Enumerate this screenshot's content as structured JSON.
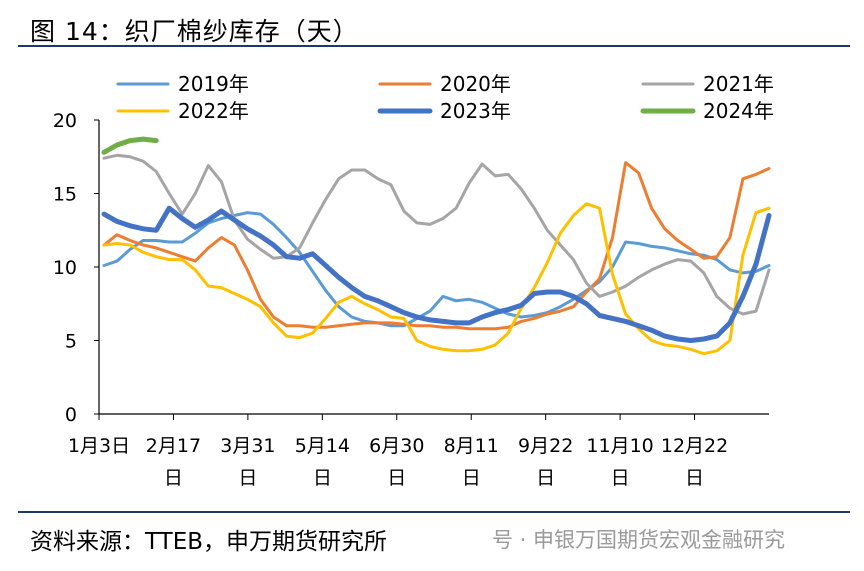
{
  "header": {
    "title": "图 14：织厂棉纱库存（天）"
  },
  "footer": {
    "source": "资料来源：TTEB，申万期货研究所",
    "watermark": "号 · 申银万国期货宏观金融研究"
  },
  "chart_data": {
    "type": "line",
    "title": "图 14：织厂棉纱库存（天）",
    "xlabel": "",
    "ylabel": "",
    "ylim": [
      0,
      20
    ],
    "yticks": [
      0,
      5,
      10,
      15,
      20
    ],
    "x_tick_labels": [
      {
        "line1": "1月3日",
        "line2": ""
      },
      {
        "line1": "2月17",
        "line2": "日"
      },
      {
        "line1": "3月31",
        "line2": "日"
      },
      {
        "line1": "5月14",
        "line2": "日"
      },
      {
        "line1": "6月30",
        "line2": "日"
      },
      {
        "line1": "8月11",
        "line2": "日"
      },
      {
        "line1": "9月22",
        "line2": "日"
      },
      {
        "line1": "11月10",
        "line2": "日"
      },
      {
        "line1": "12月22",
        "line2": "日"
      }
    ],
    "weeks": 52,
    "grid": false,
    "legend_position": "top",
    "series": [
      {
        "name": "2019年",
        "color": "#5b9bd5",
        "width": 3,
        "values": [
          10.1,
          10.4,
          11.2,
          11.8,
          11.8,
          11.7,
          11.7,
          12.3,
          13.0,
          13.3,
          13.5,
          13.7,
          13.6,
          12.9,
          12.0,
          11.0,
          9.7,
          8.4,
          7.3,
          6.6,
          6.3,
          6.2,
          6.0,
          6.0,
          6.5,
          7.0,
          8.0,
          7.7,
          7.8,
          7.6,
          7.2,
          6.8,
          6.6,
          6.7,
          6.9,
          7.3,
          7.8,
          8.4,
          9.0,
          10.0,
          11.7,
          11.6,
          11.4,
          11.3,
          11.1,
          10.9,
          10.8,
          10.5,
          9.8,
          9.6,
          9.7,
          10.1
        ]
      },
      {
        "name": "2020年",
        "color": "#ed7d31",
        "width": 3,
        "values": [
          11.5,
          12.2,
          11.8,
          11.5,
          11.3,
          11.0,
          10.7,
          10.4,
          11.3,
          12.0,
          11.5,
          9.8,
          7.8,
          6.6,
          6.0,
          6.0,
          5.9,
          5.9,
          6.0,
          6.1,
          6.2,
          6.2,
          6.2,
          6.1,
          6.0,
          6.0,
          5.9,
          5.9,
          5.8,
          5.8,
          5.8,
          5.9,
          6.3,
          6.5,
          6.8,
          7.0,
          7.3,
          8.3,
          9.2,
          12.0,
          17.1,
          16.4,
          14.0,
          12.6,
          11.8,
          11.2,
          10.6,
          10.7,
          12.0,
          16.0,
          16.3,
          16.7
        ]
      },
      {
        "name": "2021年",
        "color": "#a5a5a5",
        "width": 3,
        "values": [
          17.4,
          17.6,
          17.5,
          17.2,
          16.5,
          15.0,
          13.6,
          15.0,
          16.9,
          15.8,
          13.2,
          11.9,
          11.2,
          10.6,
          10.7,
          11.3,
          13.0,
          14.6,
          16.0,
          16.6,
          16.6,
          16.0,
          15.6,
          13.8,
          13.0,
          12.9,
          13.3,
          14.0,
          15.7,
          17.0,
          16.2,
          16.3,
          15.3,
          14.0,
          12.5,
          11.5,
          10.5,
          8.9,
          8.0,
          8.3,
          8.7,
          9.3,
          9.8,
          10.2,
          10.5,
          10.4,
          9.6,
          8.0,
          7.2,
          6.8,
          7.0,
          9.8
        ]
      },
      {
        "name": "2022年",
        "color": "#ffc000",
        "width": 3,
        "values": [
          11.5,
          11.6,
          11.5,
          11.0,
          10.7,
          10.5,
          10.5,
          9.8,
          8.7,
          8.6,
          8.2,
          7.8,
          7.3,
          6.2,
          5.3,
          5.2,
          5.5,
          6.5,
          7.6,
          8.0,
          7.5,
          7.1,
          6.6,
          6.5,
          5.0,
          4.6,
          4.4,
          4.3,
          4.3,
          4.4,
          4.7,
          5.5,
          7.2,
          8.6,
          10.3,
          12.3,
          13.5,
          14.3,
          14.0,
          9.5,
          6.8,
          5.8,
          5.0,
          4.7,
          4.6,
          4.4,
          4.1,
          4.3,
          5.0,
          10.8,
          13.7,
          14.0
        ]
      },
      {
        "name": "2023年",
        "color": "#4472c4",
        "width": 5,
        "values": [
          13.6,
          13.1,
          12.8,
          12.6,
          12.5,
          14.0,
          13.3,
          12.7,
          13.2,
          13.8,
          13.2,
          12.6,
          12.1,
          11.5,
          10.7,
          10.6,
          10.9,
          10.1,
          9.3,
          8.6,
          8.0,
          7.7,
          7.3,
          6.9,
          6.6,
          6.4,
          6.3,
          6.2,
          6.2,
          6.6,
          6.9,
          7.1,
          7.4,
          8.2,
          8.3,
          8.3,
          8.0,
          7.5,
          6.7,
          6.5,
          6.3,
          6.0,
          5.7,
          5.3,
          5.1,
          5.0,
          5.1,
          5.3,
          6.2,
          8.0,
          10.2,
          13.5
        ]
      },
      {
        "name": "2024年",
        "color": "#70ad47",
        "width": 5,
        "values": [
          17.8,
          18.3,
          18.6,
          18.7,
          18.6
        ]
      }
    ]
  }
}
